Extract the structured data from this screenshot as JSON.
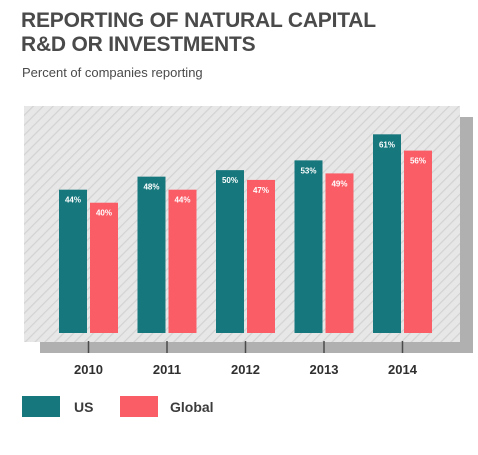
{
  "header": {
    "title_line1": "REPORTING OF NATURAL CAPITAL",
    "title_line2": "R&D OR INVESTMENTS",
    "subtitle": "Percent of companies reporting"
  },
  "colors": {
    "us": "#16777c",
    "global": "#fb5d67",
    "plot_background": "#e6e6e6",
    "frame": "#b0b0b0"
  },
  "chart_data": {
    "type": "bar",
    "title": "REPORTING OF NATURAL CAPITAL R&D OR INVESTMENTS",
    "subtitle": "Percent of companies reporting",
    "categories": [
      "2010",
      "2011",
      "2012",
      "2013",
      "2014"
    ],
    "series": [
      {
        "name": "US",
        "values": [
          44,
          48,
          50,
          53,
          61
        ],
        "labels": [
          "44%",
          "48%",
          "50%",
          "53%",
          "61%"
        ]
      },
      {
        "name": "Global",
        "values": [
          40,
          44,
          47,
          49,
          56
        ],
        "labels": [
          "40%",
          "44%",
          "47%",
          "49%",
          "56%"
        ]
      }
    ],
    "ylim": [
      0,
      70
    ],
    "grid": false,
    "legend": "bottom-left"
  },
  "legend": {
    "us_label": "US",
    "global_label": "Global"
  }
}
